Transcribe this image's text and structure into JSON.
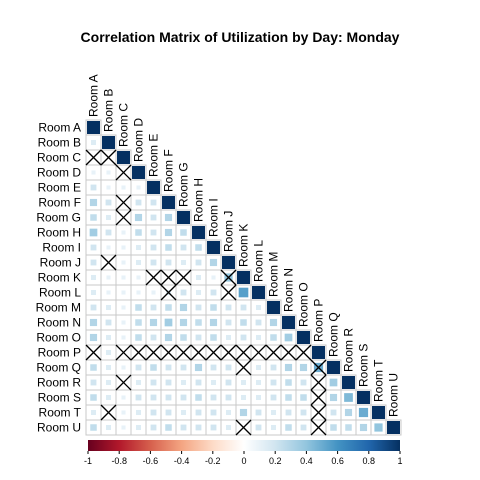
{
  "chart_data": {
    "type": "heatmap",
    "subtype": "correlation-matrix-lower-triangle",
    "title": "Correlation Matrix of Utilization by Day: Monday",
    "labels": [
      "Room A",
      "Room B",
      "Room C",
      "Room D",
      "Room E",
      "Room F",
      "Room G",
      "Room H",
      "Room I",
      "Room J",
      "Room K",
      "Room L",
      "Room M",
      "Room N",
      "Room O",
      "Room P",
      "Room Q",
      "Room R",
      "Room S",
      "Room T",
      "Room U"
    ],
    "value_range": [
      -1,
      1
    ],
    "colorbar": {
      "ticks": [
        -1,
        -0.8,
        -0.6,
        -0.4,
        -0.2,
        0,
        0.2,
        0.4,
        0.6,
        0.8,
        1
      ],
      "tick_labels": [
        "-1",
        "-0.8",
        "-0.6",
        "-0.4",
        "-0.2",
        "0",
        "0.2",
        "0.4",
        "0.6",
        "0.8",
        "1"
      ],
      "colors": [
        "#67001f",
        "#b2182b",
        "#d6604d",
        "#f4a582",
        "#fddbc7",
        "#ffffff",
        "#d1e5f0",
        "#92c5de",
        "#4393c3",
        "#2166ac",
        "#053061"
      ],
      "placement": "bottom"
    },
    "values": [
      [
        1
      ],
      [
        0.15,
        1
      ],
      [
        0.0,
        0.0,
        1
      ],
      [
        0.1,
        0.1,
        0.0,
        1
      ],
      [
        0.2,
        0.1,
        0.1,
        0.1,
        1
      ],
      [
        0.3,
        0.2,
        0.0,
        0.2,
        0.2,
        1
      ],
      [
        0.25,
        0.15,
        0.0,
        0.3,
        0.2,
        0.3,
        1
      ],
      [
        0.35,
        0.2,
        0.1,
        0.25,
        0.2,
        0.3,
        0.25,
        1
      ],
      [
        0.2,
        0.1,
        0.1,
        0.15,
        0.2,
        0.25,
        0.2,
        0.25,
        1
      ],
      [
        0.2,
        0.0,
        0.1,
        0.15,
        0.2,
        0.2,
        0.15,
        0.2,
        0.3,
        1
      ],
      [
        0.15,
        0.1,
        0.1,
        0.1,
        0.0,
        0.0,
        0.0,
        0.15,
        0.1,
        0.4,
        1
      ],
      [
        0.15,
        0.1,
        0.1,
        0.1,
        0.1,
        0.15,
        0.2,
        0.15,
        0.2,
        0.0,
        0.55,
        1
      ],
      [
        0.2,
        0.15,
        0.1,
        0.25,
        0.2,
        0.25,
        0.3,
        0.2,
        0.25,
        0.2,
        0.2,
        0.15,
        1
      ],
      [
        0.3,
        0.2,
        0.1,
        0.25,
        0.3,
        0.35,
        0.3,
        0.25,
        0.3,
        0.2,
        0.25,
        0.2,
        0.3,
        1
      ],
      [
        0.3,
        0.15,
        0.1,
        0.25,
        0.2,
        0.3,
        0.25,
        0.2,
        0.25,
        0.15,
        0.2,
        0.15,
        0.25,
        0.35,
        1
      ],
      [
        0.0,
        0.15,
        0.0,
        0.0,
        0.0,
        0.0,
        0.0,
        0.0,
        0.0,
        0.0,
        0.0,
        0.0,
        0.0,
        0.0,
        0.0,
        1
      ],
      [
        0.25,
        0.15,
        0.1,
        0.2,
        0.25,
        0.2,
        0.2,
        0.3,
        0.2,
        0.2,
        0.0,
        0.15,
        0.2,
        0.3,
        0.3,
        0.5,
        1
      ],
      [
        0.2,
        0.15,
        0.0,
        0.15,
        0.2,
        0.2,
        0.15,
        0.2,
        0.15,
        0.2,
        0.15,
        0.15,
        0.2,
        0.25,
        0.2,
        0.0,
        0.35,
        1
      ],
      [
        0.25,
        0.15,
        0.1,
        0.2,
        0.2,
        0.2,
        0.2,
        0.25,
        0.2,
        0.2,
        0.15,
        0.15,
        0.2,
        0.25,
        0.25,
        0.0,
        0.3,
        0.45,
        1
      ],
      [
        0.15,
        0.0,
        0.1,
        0.15,
        0.2,
        0.2,
        0.15,
        0.2,
        0.2,
        0.15,
        0.3,
        0.2,
        0.15,
        0.2,
        0.2,
        0.0,
        0.2,
        0.3,
        0.5,
        1
      ],
      [
        0.25,
        0.15,
        0.1,
        0.15,
        0.2,
        0.25,
        0.2,
        0.2,
        0.2,
        0.15,
        0.0,
        0.2,
        0.15,
        0.25,
        0.2,
        0.0,
        0.25,
        0.25,
        0.3,
        0.4,
        1
      ]
    ],
    "crossed_cells": [
      [
        2,
        0
      ],
      [
        2,
        1
      ],
      [
        3,
        2
      ],
      [
        5,
        2
      ],
      [
        6,
        2
      ],
      [
        9,
        1
      ],
      [
        10,
        4
      ],
      [
        10,
        5
      ],
      [
        10,
        6
      ],
      [
        11,
        5
      ],
      [
        10,
        9
      ],
      [
        11,
        9
      ],
      [
        15,
        0
      ],
      [
        15,
        2
      ],
      [
        15,
        3
      ],
      [
        15,
        4
      ],
      [
        15,
        5
      ],
      [
        15,
        6
      ],
      [
        15,
        7
      ],
      [
        15,
        8
      ],
      [
        15,
        9
      ],
      [
        15,
        10
      ],
      [
        15,
        11
      ],
      [
        15,
        12
      ],
      [
        15,
        13
      ],
      [
        15,
        14
      ],
      [
        16,
        10
      ],
      [
        16,
        15
      ],
      [
        17,
        2
      ],
      [
        17,
        15
      ],
      [
        18,
        15
      ],
      [
        19,
        1
      ],
      [
        19,
        15
      ],
      [
        20,
        10
      ],
      [
        20,
        15
      ]
    ]
  }
}
